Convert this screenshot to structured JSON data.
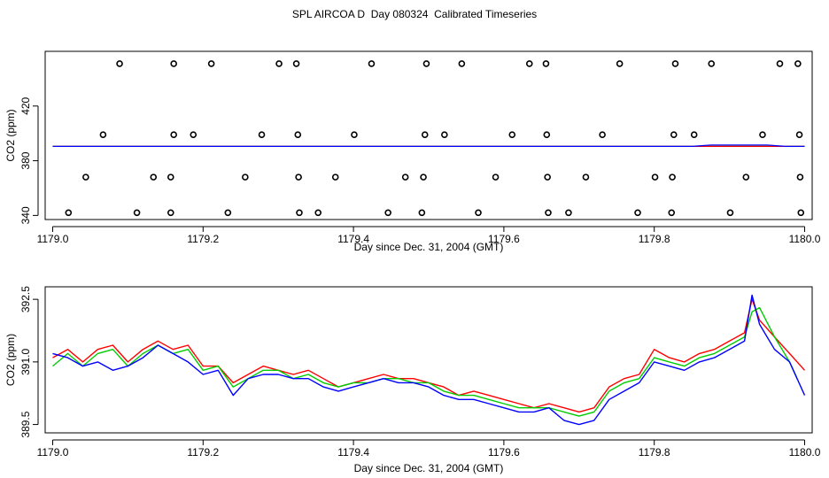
{
  "title": "SPL AIRCOA D  Day 080324  Calibrated Timeseries",
  "chart_data": [
    {
      "type": "scatter",
      "xlabel": "Day since Dec. 31, 2004 (GMT)",
      "ylabel": "CO2 (ppm)",
      "xlim": [
        1178.99,
        1180.01
      ],
      "ylim": [
        337,
        460
      ],
      "xticks": [
        {
          "value": 1179.0,
          "label": "1179.0"
        },
        {
          "value": 1179.2,
          "label": "1179.2"
        },
        {
          "value": 1179.4,
          "label": "1179.4"
        },
        {
          "value": 1179.6,
          "label": "1179.6"
        },
        {
          "value": 1179.8,
          "label": "1179.8"
        },
        {
          "value": 1180.0,
          "label": "1180.0"
        }
      ],
      "yticks": [
        {
          "value": 340,
          "label": "340"
        },
        {
          "value": 380,
          "label": "380"
        },
        {
          "value": 420,
          "label": "420"
        }
      ],
      "markers": [
        {
          "x": 1179.021,
          "y": 342
        },
        {
          "x": 1179.044,
          "y": 368
        },
        {
          "x": 1179.067,
          "y": 399
        },
        {
          "x": 1179.089,
          "y": 451
        },
        {
          "x": 1179.112,
          "y": 342
        },
        {
          "x": 1179.134,
          "y": 368
        },
        {
          "x": 1179.157,
          "y": 368
        },
        {
          "x": 1179.157,
          "y": 342
        },
        {
          "x": 1179.161,
          "y": 451
        },
        {
          "x": 1179.161,
          "y": 399
        },
        {
          "x": 1179.187,
          "y": 399
        },
        {
          "x": 1179.211,
          "y": 451
        },
        {
          "x": 1179.233,
          "y": 342
        },
        {
          "x": 1179.256,
          "y": 368
        },
        {
          "x": 1179.278,
          "y": 399
        },
        {
          "x": 1179.301,
          "y": 451
        },
        {
          "x": 1179.324,
          "y": 451
        },
        {
          "x": 1179.326,
          "y": 399
        },
        {
          "x": 1179.327,
          "y": 368
        },
        {
          "x": 1179.328,
          "y": 342
        },
        {
          "x": 1179.353,
          "y": 342
        },
        {
          "x": 1179.376,
          "y": 368
        },
        {
          "x": 1179.401,
          "y": 399
        },
        {
          "x": 1179.424,
          "y": 451
        },
        {
          "x": 1179.446,
          "y": 342
        },
        {
          "x": 1179.469,
          "y": 368
        },
        {
          "x": 1179.491,
          "y": 342
        },
        {
          "x": 1179.493,
          "y": 368
        },
        {
          "x": 1179.495,
          "y": 399
        },
        {
          "x": 1179.497,
          "y": 451
        },
        {
          "x": 1179.521,
          "y": 399
        },
        {
          "x": 1179.544,
          "y": 451
        },
        {
          "x": 1179.566,
          "y": 342
        },
        {
          "x": 1179.589,
          "y": 368
        },
        {
          "x": 1179.611,
          "y": 399
        },
        {
          "x": 1179.634,
          "y": 451
        },
        {
          "x": 1179.656,
          "y": 451
        },
        {
          "x": 1179.657,
          "y": 399
        },
        {
          "x": 1179.658,
          "y": 368
        },
        {
          "x": 1179.659,
          "y": 342
        },
        {
          "x": 1179.686,
          "y": 342
        },
        {
          "x": 1179.709,
          "y": 368
        },
        {
          "x": 1179.731,
          "y": 399
        },
        {
          "x": 1179.754,
          "y": 451
        },
        {
          "x": 1179.778,
          "y": 342
        },
        {
          "x": 1179.801,
          "y": 368
        },
        {
          "x": 1179.823,
          "y": 342
        },
        {
          "x": 1179.824,
          "y": 368
        },
        {
          "x": 1179.826,
          "y": 399
        },
        {
          "x": 1179.828,
          "y": 451
        },
        {
          "x": 1179.853,
          "y": 399
        },
        {
          "x": 1179.876,
          "y": 451
        },
        {
          "x": 1179.901,
          "y": 342
        },
        {
          "x": 1179.922,
          "y": 368
        },
        {
          "x": 1179.944,
          "y": 399
        },
        {
          "x": 1179.967,
          "y": 451
        },
        {
          "x": 1179.991,
          "y": 451
        },
        {
          "x": 1179.993,
          "y": 399
        },
        {
          "x": 1179.994,
          "y": 368
        },
        {
          "x": 1179.995,
          "y": 342
        }
      ],
      "lines_y_approx": 390.5
    },
    {
      "type": "line",
      "xlabel": "Day since Dec. 31, 2004 (GMT)",
      "ylabel": "CO2 (ppm)",
      "xlim": [
        1178.99,
        1180.01
      ],
      "ylim": [
        389.3,
        392.8
      ],
      "xticks": [
        {
          "value": 1179.0,
          "label": "1179.0"
        },
        {
          "value": 1179.2,
          "label": "1179.2"
        },
        {
          "value": 1179.4,
          "label": "1179.4"
        },
        {
          "value": 1179.6,
          "label": "1179.6"
        },
        {
          "value": 1179.8,
          "label": "1179.8"
        },
        {
          "value": 1180.0,
          "label": "1180.0"
        }
      ],
      "yticks": [
        {
          "value": 389.5,
          "label": "389.5"
        },
        {
          "value": 391.0,
          "label": "391.0"
        },
        {
          "value": 392.5,
          "label": "392.5"
        }
      ],
      "series": [
        {
          "color": "#ff0000",
          "x": [
            1179.0,
            1179.02,
            1179.04,
            1179.06,
            1179.08,
            1179.1,
            1179.12,
            1179.14,
            1179.16,
            1179.18,
            1179.2,
            1179.22,
            1179.24,
            1179.26,
            1179.28,
            1179.3,
            1179.32,
            1179.34,
            1179.36,
            1179.38,
            1179.4,
            1179.42,
            1179.44,
            1179.46,
            1179.48,
            1179.5,
            1179.52,
            1179.54,
            1179.56,
            1179.58,
            1179.6,
            1179.62,
            1179.64,
            1179.66,
            1179.68,
            1179.7,
            1179.72,
            1179.74,
            1179.76,
            1179.78,
            1179.8,
            1179.82,
            1179.84,
            1179.86,
            1179.88,
            1179.9,
            1179.92,
            1179.93,
            1179.94,
            1179.96,
            1179.98,
            1180.0
          ],
          "y": [
            391.1,
            391.3,
            391.0,
            391.3,
            391.4,
            391.0,
            391.3,
            391.5,
            391.3,
            391.4,
            390.9,
            390.9,
            390.5,
            390.7,
            390.9,
            390.8,
            390.7,
            390.8,
            390.6,
            390.4,
            390.5,
            390.6,
            390.7,
            390.6,
            390.6,
            390.5,
            390.4,
            390.2,
            390.3,
            390.2,
            390.1,
            390.0,
            389.9,
            390.0,
            389.9,
            389.8,
            389.9,
            390.4,
            390.6,
            390.7,
            391.3,
            391.1,
            391.0,
            391.2,
            391.3,
            391.5,
            391.7,
            392.5,
            392.0,
            391.6,
            391.2,
            390.8
          ]
        },
        {
          "color": "#00cc00",
          "x": [
            1179.0,
            1179.02,
            1179.04,
            1179.06,
            1179.08,
            1179.1,
            1179.12,
            1179.14,
            1179.16,
            1179.18,
            1179.2,
            1179.22,
            1179.24,
            1179.26,
            1179.28,
            1179.3,
            1179.32,
            1179.34,
            1179.36,
            1179.38,
            1179.4,
            1179.42,
            1179.44,
            1179.46,
            1179.48,
            1179.5,
            1179.52,
            1179.54,
            1179.56,
            1179.58,
            1179.6,
            1179.62,
            1179.64,
            1179.66,
            1179.68,
            1179.7,
            1179.72,
            1179.74,
            1179.76,
            1179.78,
            1179.8,
            1179.82,
            1179.84,
            1179.86,
            1179.88,
            1179.9,
            1179.92,
            1179.93,
            1179.94,
            1179.96,
            1179.98,
            1179.99
          ],
          "y": [
            390.9,
            391.2,
            390.9,
            391.2,
            391.3,
            390.9,
            391.2,
            391.4,
            391.2,
            391.3,
            390.8,
            390.9,
            390.4,
            390.6,
            390.8,
            390.8,
            390.6,
            390.7,
            390.5,
            390.4,
            390.5,
            390.5,
            390.6,
            390.6,
            390.5,
            390.5,
            390.3,
            390.2,
            390.2,
            390.1,
            390.0,
            389.9,
            389.9,
            389.9,
            389.8,
            389.7,
            389.8,
            390.3,
            390.5,
            390.6,
            391.1,
            391.0,
            390.9,
            391.1,
            391.2,
            391.4,
            391.6,
            392.2,
            392.3,
            391.6,
            391.0,
            390.6
          ]
        },
        {
          "color": "#0000ff",
          "x": [
            1179.0,
            1179.02,
            1179.04,
            1179.06,
            1179.08,
            1179.1,
            1179.12,
            1179.14,
            1179.16,
            1179.18,
            1179.2,
            1179.22,
            1179.24,
            1179.26,
            1179.28,
            1179.3,
            1179.32,
            1179.34,
            1179.36,
            1179.38,
            1179.4,
            1179.42,
            1179.44,
            1179.46,
            1179.48,
            1179.5,
            1179.52,
            1179.54,
            1179.56,
            1179.58,
            1179.6,
            1179.62,
            1179.64,
            1179.66,
            1179.68,
            1179.7,
            1179.72,
            1179.74,
            1179.76,
            1179.78,
            1179.8,
            1179.82,
            1179.84,
            1179.86,
            1179.88,
            1179.9,
            1179.92,
            1179.93,
            1179.94,
            1179.96,
            1179.98,
            1180.0
          ],
          "y": [
            391.2,
            391.1,
            390.9,
            391.0,
            390.8,
            390.9,
            391.1,
            391.4,
            391.2,
            391.0,
            390.7,
            390.8,
            390.2,
            390.6,
            390.7,
            390.7,
            390.6,
            390.6,
            390.4,
            390.3,
            390.4,
            390.5,
            390.6,
            390.5,
            390.5,
            390.4,
            390.2,
            390.1,
            390.1,
            390.0,
            389.9,
            389.8,
            389.8,
            389.9,
            389.6,
            389.5,
            389.6,
            390.1,
            390.3,
            390.5,
            391.0,
            390.9,
            390.8,
            391.0,
            391.1,
            391.3,
            391.5,
            392.6,
            391.9,
            391.3,
            391.0,
            390.2
          ]
        }
      ]
    }
  ]
}
